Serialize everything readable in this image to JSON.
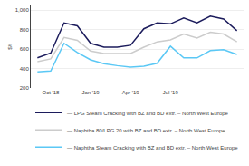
{
  "chart_data": {
    "type": "line",
    "ylabel": "$/t",
    "categories": [
      null,
      "Oct '18",
      null,
      null,
      "Jan '19",
      null,
      null,
      "Apr '19",
      null,
      null,
      "Jul '19",
      null,
      null,
      null,
      null,
      null
    ],
    "ylim": [
      200,
      1050
    ],
    "yticks": [
      200,
      400,
      600,
      800,
      {
        "value": 1000,
        "label": "1,000"
      }
    ],
    "grid": true,
    "legend": "bottom",
    "series": [
      {
        "name": "— LPG Steam Cracking with BZ and BD extr. – North West Europe",
        "color": "#1c1c5c",
        "values": [
          510,
          560,
          870,
          840,
          660,
          620,
          620,
          640,
          810,
          870,
          860,
          920,
          870,
          940,
          910,
          790
        ]
      },
      {
        "name": "— Naphtha 80/LPG 20 with BZ and BD extr. – North West Europe",
        "color": "#cccccc",
        "values": [
          470,
          500,
          720,
          690,
          580,
          555,
          555,
          555,
          620,
          675,
          695,
          755,
          715,
          775,
          755,
          675
        ]
      },
      {
        "name": "— Naphtha Steam Cracking with BZ and BD extr. – North West Europe",
        "color": "#5bc8f5",
        "values": [
          365,
          375,
          660,
          565,
          490,
          450,
          430,
          415,
          425,
          455,
          630,
          510,
          510,
          585,
          595,
          545
        ]
      }
    ]
  }
}
